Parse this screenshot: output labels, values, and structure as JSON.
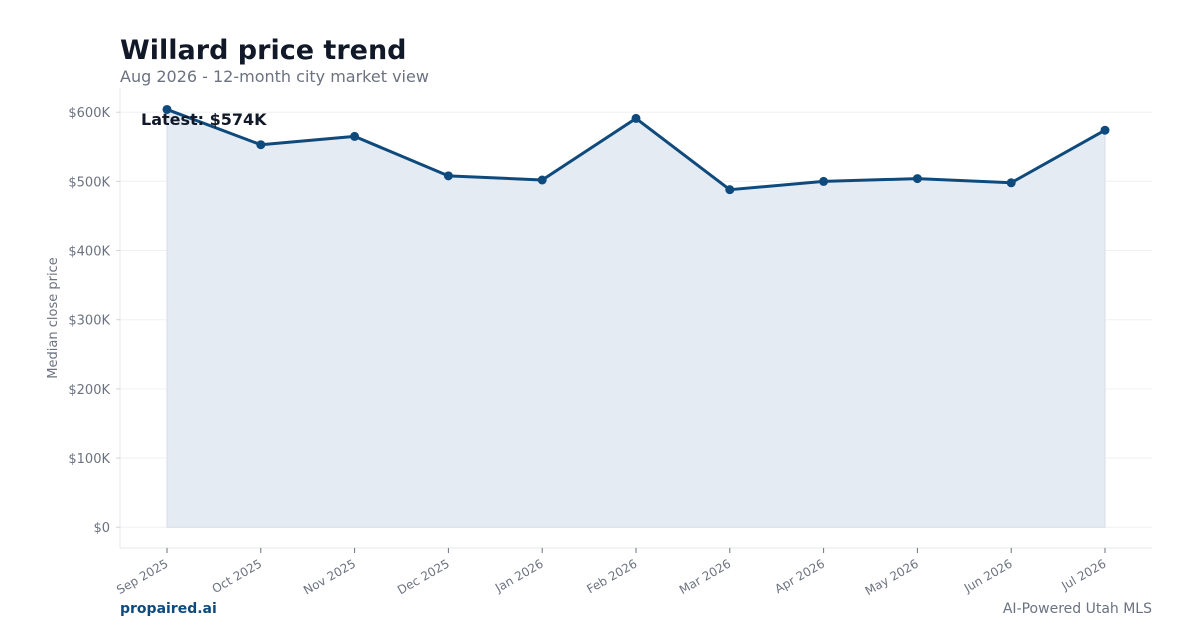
{
  "chart_data": {
    "type": "area",
    "title": "Willard price trend",
    "subtitle": "Aug 2026 - 12-month city market view",
    "xlabel": "",
    "ylabel": "Median close price",
    "categories": [
      "Sep 2025",
      "Oct 2025",
      "Nov 2025",
      "Dec 2025",
      "Jan 2026",
      "Feb 2026",
      "Mar 2026",
      "Apr 2026",
      "May 2026",
      "Jun 2026",
      "Jul 2026"
    ],
    "series": [
      {
        "values": [
          604000,
          553000,
          565000,
          508000,
          502000,
          591000,
          488000,
          500000,
          504000,
          498000,
          574000
        ]
      }
    ],
    "ylim": [
      -30000,
      635000
    ],
    "yticks": [
      0,
      100000,
      200000,
      300000,
      400000,
      500000,
      600000
    ],
    "ytick_labels": [
      "$0",
      "$100K",
      "$200K",
      "$300K",
      "$400K",
      "$500K",
      "$600K"
    ],
    "annotation": "Latest: $574K",
    "grid": true,
    "legend": "none",
    "colors": {
      "line": "#0f4a7d",
      "fill": "#e5ebf3",
      "grid": "#eef0f3",
      "axis_text": "#6b7280",
      "title": "#111827"
    }
  },
  "footer": {
    "brand": "propaired.ai",
    "tagline": "AI-Powered Utah MLS"
  }
}
